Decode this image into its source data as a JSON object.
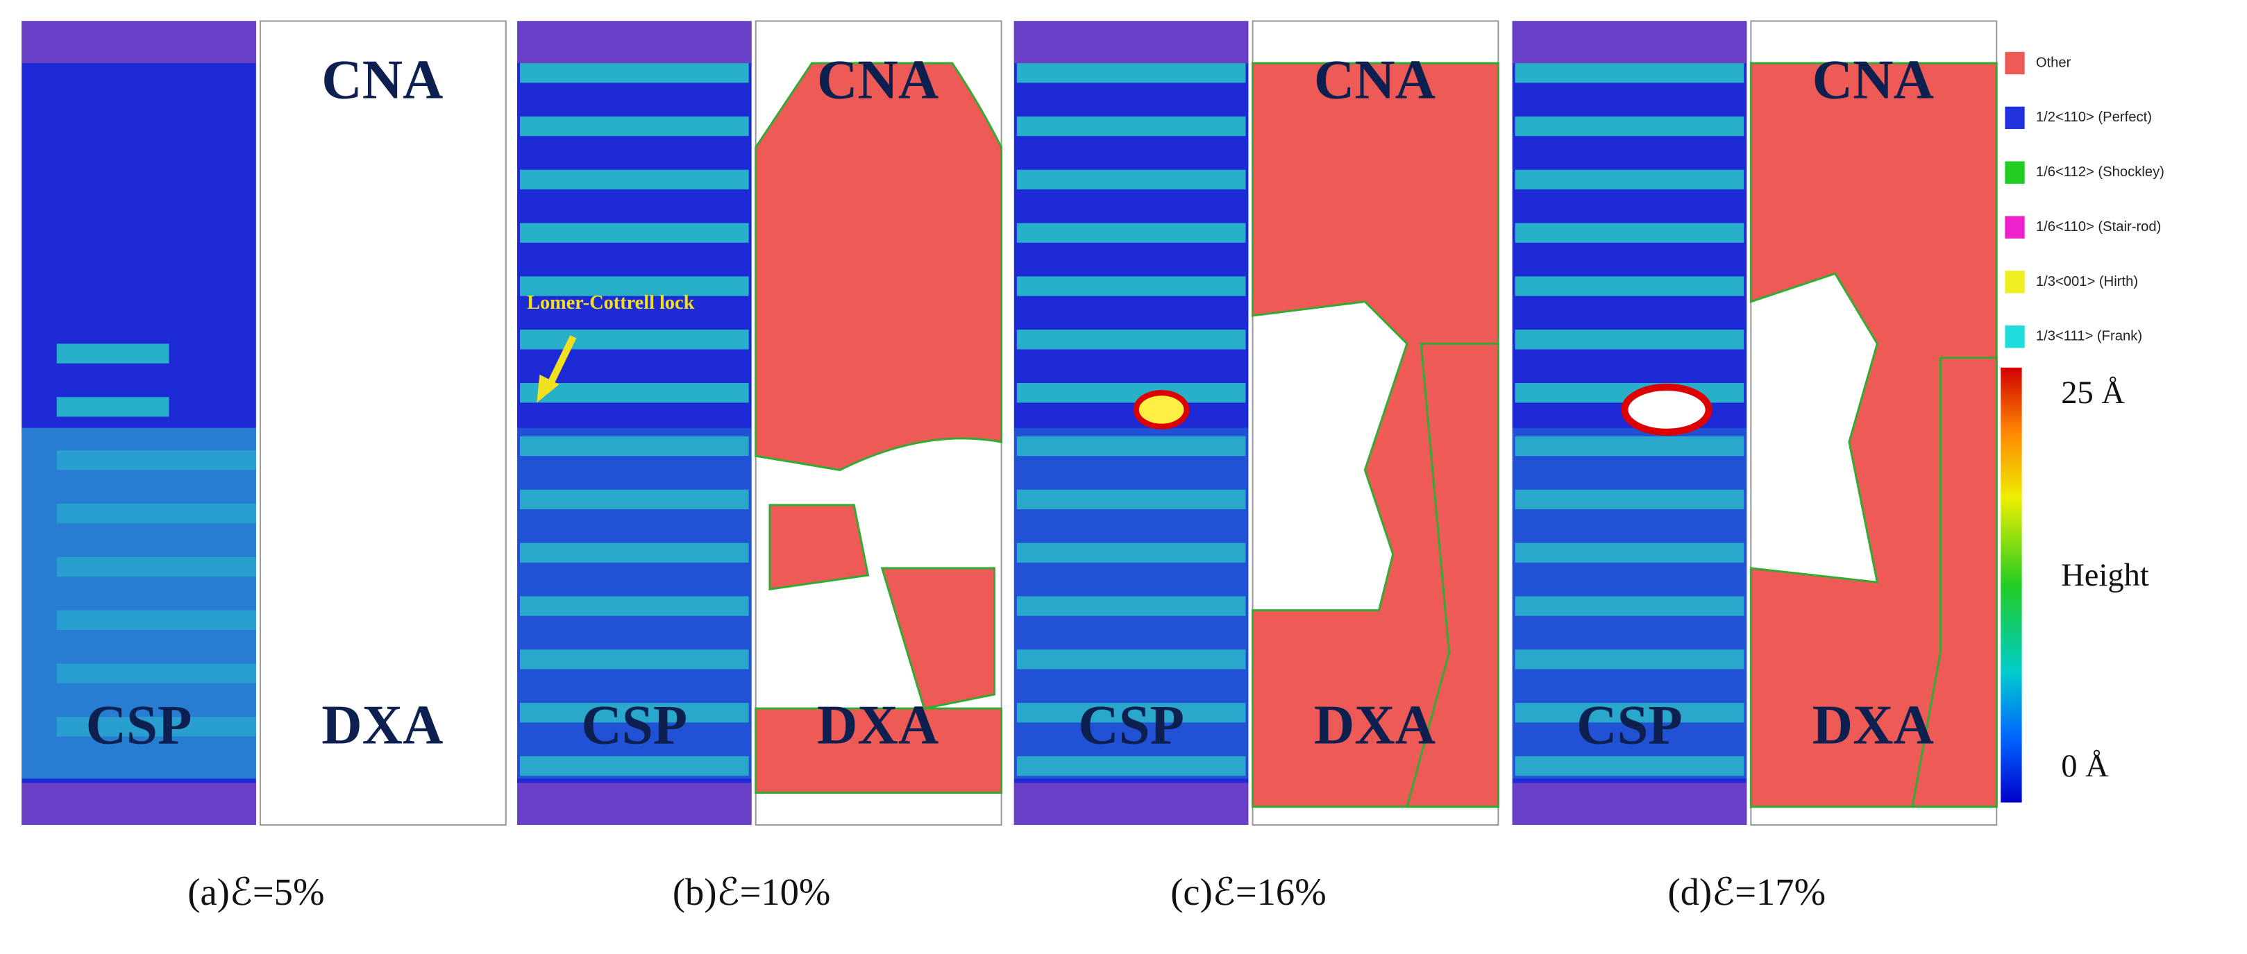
{
  "panels": [
    {
      "caption": "(a)ℰ=5%",
      "csp": "CSP",
      "cna": "CNA",
      "dxa": "DXA"
    },
    {
      "caption": "(b)ℰ=10%",
      "csp": "CSP",
      "cna": "CNA",
      "dxa": "DXA",
      "annotation": "Lomer-Cottrell lock"
    },
    {
      "caption": "(c)ℰ=16%",
      "csp": "CSP",
      "cna": "CNA",
      "dxa": "DXA"
    },
    {
      "caption": "(d)ℰ=17%",
      "csp": "CSP",
      "cna": "CNA",
      "dxa": "DXA"
    }
  ],
  "legend": [
    {
      "label": "Other",
      "color": "#ee5a55"
    },
    {
      "label": "1/2<110> (Perfect)",
      "color": "#2233dd"
    },
    {
      "label": "1/6<112> (Shockley)",
      "color": "#22cc22"
    },
    {
      "label": "1/6<110> (Stair-rod)",
      "color": "#ee22cc"
    },
    {
      "label": "1/3<001> (Hirth)",
      "color": "#eeee22"
    },
    {
      "label": "1/3<111> (Frank)",
      "color": "#22dddd"
    }
  ],
  "colorbar": {
    "top": "25 Å",
    "middle": "Height",
    "bottom": "0 Å"
  }
}
